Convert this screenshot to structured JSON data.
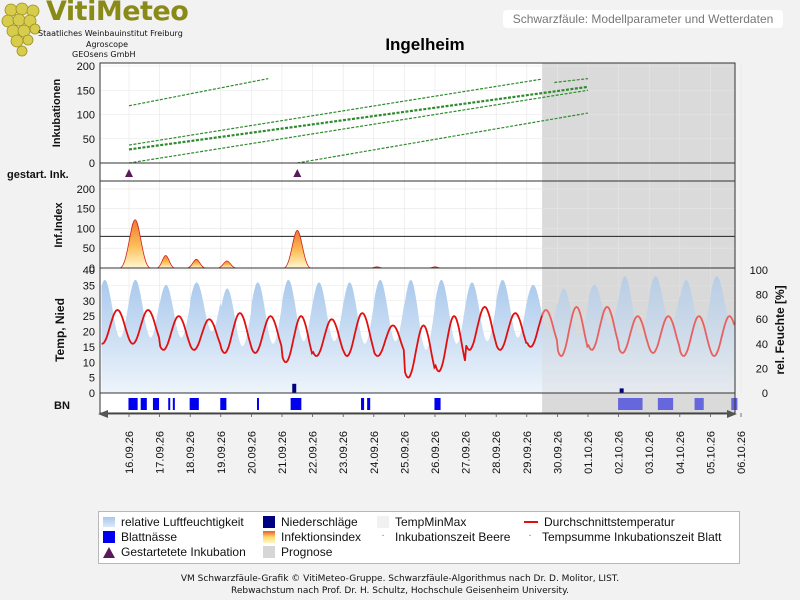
{
  "logo": {
    "title": "VitiMeteo",
    "lines": [
      "Staatliches Weinbauinstitut Freiburg",
      "Agroscope",
      "GEOsens GmbH"
    ]
  },
  "header_title": "Schwarzfäule: Modellparameter und Wetterdaten",
  "station": "Ingelheim",
  "colors": {
    "inkubation": "#2e8b2e",
    "infindex_fill": "#fdbf5a",
    "infindex_line": "#cc2222",
    "humidity": "#a8c8ec",
    "temperature": "#e01010",
    "blattnaesse": "#0000ee",
    "niederschlaege": "#000080",
    "prognose": "#d6d6d6",
    "started": "#5a1a5a"
  },
  "chart_data": {
    "type": "line",
    "x_dates": [
      "16.09.26",
      "17.09.26",
      "18.09.26",
      "19.09.26",
      "20.09.26",
      "21.09.26",
      "22.09.26",
      "23.09.26",
      "24.09.26",
      "25.09.26",
      "26.09.26",
      "27.09.26",
      "28.09.26",
      "29.09.26",
      "30.09.26",
      "01.10.26",
      "02.10.26",
      "03.10.26",
      "04.10.26",
      "05.10.26",
      "06.10.26"
    ],
    "prognose_start": "29.09.26 12:00",
    "panels": [
      {
        "name": "inkubationen",
        "ylabel": "Inkubationen",
        "ylim": [
          0,
          200
        ],
        "yticks": [
          0,
          50,
          100,
          150,
          200
        ],
        "series": [
          {
            "x0": 0.0,
            "x1": 4.55,
            "y0": 118,
            "y1": 174,
            "width": 1.2
          },
          {
            "x0": 0.0,
            "x1": 13.5,
            "y0": 37,
            "y1": 173,
            "width": 1.2
          },
          {
            "x0": 13.9,
            "x1": 15.0,
            "y0": 166,
            "y1": 174,
            "width": 1.2
          },
          {
            "x0": 0.0,
            "x1": 15.0,
            "y0": 28,
            "y1": 157,
            "width": 2.2
          },
          {
            "x0": 0.0,
            "x1": 15.0,
            "y0": 0,
            "y1": 150,
            "width": 1.2
          },
          {
            "x0": 5.5,
            "x1": 15.0,
            "y0": 0,
            "y1": 103,
            "width": 1.2
          }
        ]
      },
      {
        "name": "gestartete inkubationen",
        "ylabel": "gestart. Ink.",
        "markers_x": [
          0.0,
          5.5
        ]
      },
      {
        "name": "infektionsindex",
        "ylabel": "Inf.Index",
        "ylim": [
          0,
          220
        ],
        "yticks": [
          0,
          50,
          100,
          150,
          200
        ],
        "threshold": 80,
        "peaks": [
          {
            "x": 0.2,
            "y": 122,
            "w": 0.25
          },
          {
            "x": 1.2,
            "y": 32,
            "w": 0.15
          },
          {
            "x": 2.2,
            "y": 22,
            "w": 0.15
          },
          {
            "x": 3.2,
            "y": 18,
            "w": 0.15
          },
          {
            "x": 5.5,
            "y": 95,
            "w": 0.22
          },
          {
            "x": 8.1,
            "y": 3,
            "w": 0.1
          },
          {
            "x": 10.0,
            "y": 3,
            "w": 0.1
          }
        ]
      },
      {
        "name": "wetter",
        "ylabel": "Temp, Nied",
        "ylabel_right": "rel. Feuchte [%]",
        "ylim": [
          0,
          40
        ],
        "yticks": [
          0,
          5,
          10,
          15,
          20,
          25,
          30,
          35,
          40
        ],
        "ylim_right": [
          0,
          100
        ],
        "yticks_right": [
          0,
          20,
          40,
          60,
          80,
          100
        ],
        "temperature_daily": [
          {
            "max": 27,
            "min": 16
          },
          {
            "max": 25,
            "min": 14
          },
          {
            "max": 24,
            "min": 14
          },
          {
            "max": 26,
            "min": 13
          },
          {
            "max": 25,
            "min": 13
          },
          {
            "max": 25,
            "min": 10
          },
          {
            "max": 24,
            "min": 12
          },
          {
            "max": 26,
            "min": 12
          },
          {
            "max": 22,
            "min": 12
          },
          {
            "max": 22,
            "min": 5
          },
          {
            "max": 25,
            "min": 7
          },
          {
            "max": 28,
            "min": 14
          },
          {
            "max": 26,
            "min": 14
          },
          {
            "max": 27,
            "min": 15
          },
          {
            "max": 28,
            "min": 12
          },
          {
            "max": 28,
            "min": 14
          },
          {
            "max": 25,
            "min": 13
          },
          {
            "max": 25,
            "min": 13
          },
          {
            "max": 25,
            "min": 12
          },
          {
            "max": 25,
            "min": 12
          },
          {
            "max": 23,
            "min": 14
          }
        ],
        "humidity_daily": [
          {
            "max": 92,
            "min": 45
          },
          {
            "max": 88,
            "min": 45
          },
          {
            "max": 90,
            "min": 50
          },
          {
            "max": 85,
            "min": 38
          },
          {
            "max": 90,
            "min": 40
          },
          {
            "max": 92,
            "min": 42
          },
          {
            "max": 90,
            "min": 42
          },
          {
            "max": 90,
            "min": 40
          },
          {
            "max": 92,
            "min": 42
          },
          {
            "max": 92,
            "min": 35
          },
          {
            "max": 92,
            "min": 40
          },
          {
            "max": 90,
            "min": 42
          },
          {
            "max": 92,
            "min": 45
          },
          {
            "max": 88,
            "min": 50
          },
          {
            "max": 85,
            "min": 45
          },
          {
            "max": 88,
            "min": 55
          },
          {
            "max": 95,
            "min": 45
          },
          {
            "max": 95,
            "min": 55
          },
          {
            "max": 92,
            "min": 50
          },
          {
            "max": 95,
            "min": 55
          },
          {
            "max": 92,
            "min": 60
          }
        ],
        "precip": [
          {
            "x": 5.4,
            "value": 3
          },
          {
            "x": 16.1,
            "value": 1.5
          }
        ]
      },
      {
        "name": "blattnaesse",
        "ylabel": "BN",
        "intervals": [
          [
            0.0,
            0.3
          ],
          [
            0.4,
            0.6
          ],
          [
            0.8,
            1.0
          ],
          [
            1.3,
            1.35
          ],
          [
            1.45,
            1.5
          ],
          [
            2.0,
            2.3
          ],
          [
            3.0,
            3.2
          ],
          [
            4.2,
            4.25
          ],
          [
            5.3,
            5.65
          ],
          [
            7.6,
            7.7
          ],
          [
            7.8,
            7.9
          ],
          [
            10.0,
            10.2
          ],
          [
            16.0,
            16.8
          ],
          [
            17.3,
            17.8
          ],
          [
            18.5,
            18.8
          ],
          [
            19.7,
            19.9
          ]
        ]
      }
    ]
  },
  "legend": [
    {
      "label": "relative Luftfeuchtigkeit",
      "swatch": "humidity-fill"
    },
    {
      "label": "Niederschläge",
      "swatch": "precip"
    },
    {
      "label": "TempMinMax",
      "swatch": "tempminmax"
    },
    {
      "label": "Durchschnittstemperatur",
      "swatch": "temp-line"
    },
    {
      "label": "Blattnässe",
      "swatch": "leafwet"
    },
    {
      "label": "Infektionsindex",
      "swatch": "infindex"
    },
    {
      "label": "Inkubationszeit Beere",
      "swatch": "inkub-beere"
    },
    {
      "label": "Tempsumme Inkubationszeit Blatt",
      "swatch": "inkub-blatt"
    },
    {
      "label": "Gestartetete Inkubation",
      "swatch": "started"
    },
    {
      "label": "Prognose",
      "swatch": "prognose"
    }
  ],
  "footer": [
    "VM Schwarzfäule-Grafik © VitiMeteo-Gruppe. Schwarzfäule-Algorithmus nach Dr. D. Molitor, LIST.",
    "Rebwachstum nach Prof. Dr. H. Schultz, Hochschule Geisenheim University."
  ]
}
